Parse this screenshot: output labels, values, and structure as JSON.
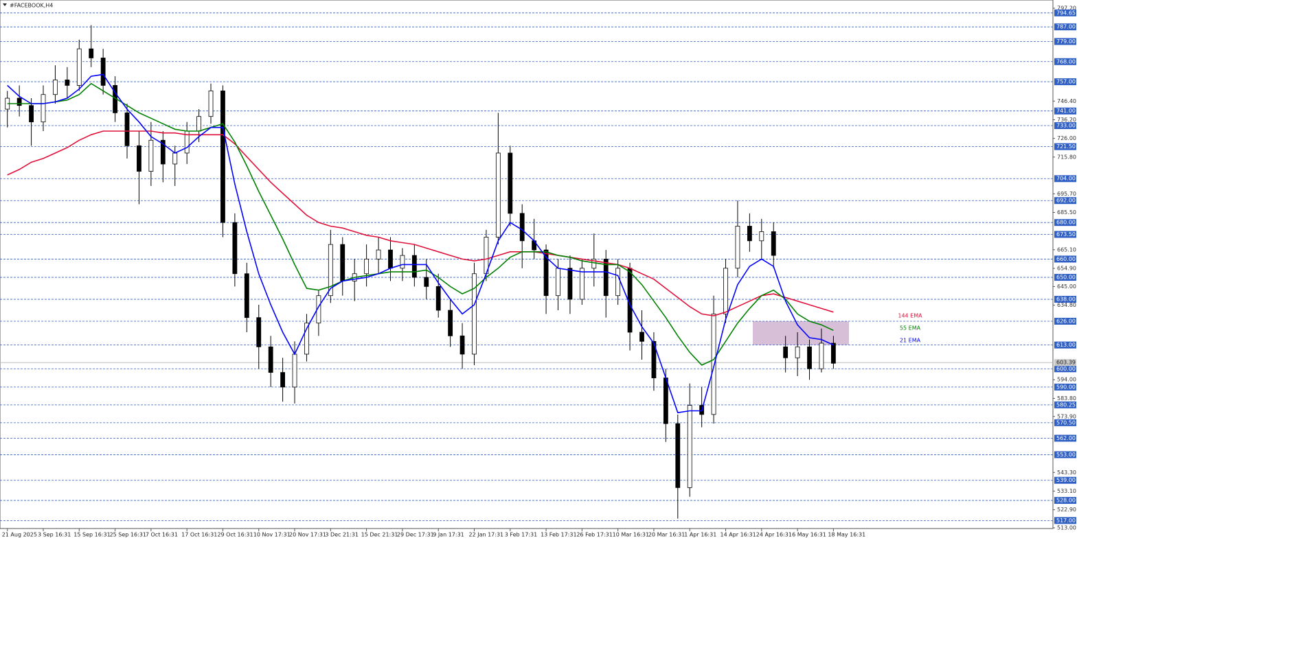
{
  "chart_data": {
    "type": "candlestick",
    "title": "#FACEBOOK,H4",
    "categories": [
      "21 Aug 2025",
      null,
      null,
      "3 Sep 16:31",
      null,
      null,
      "15 Sep 16:31",
      null,
      null,
      "25 Sep 16:31",
      null,
      null,
      "7 Oct 16:31",
      null,
      null,
      "17 Oct 16:31",
      null,
      null,
      "29 Oct 16:31",
      null,
      null,
      "10 Nov 17:31",
      null,
      null,
      "20 Nov 17:31",
      null,
      null,
      "3 Dec 21:31",
      null,
      null,
      "15 Dec 21:31",
      null,
      null,
      "29 Dec 17:31",
      null,
      null,
      "9 Jan 17:31",
      null,
      null,
      "22 Jan 17:31",
      null,
      null,
      "3 Feb 17:31",
      null,
      null,
      "13 Feb 17:31",
      null,
      null,
      "26 Feb 17:31",
      null,
      null,
      "10 Mar 16:31",
      null,
      null,
      "20 Mar 16:31",
      null,
      null,
      "1 Apr 16:31",
      null,
      null,
      "14 Apr 16:31",
      null,
      null,
      "24 Apr 16:31",
      null,
      null,
      "6 May 16:31",
      null,
      null,
      "18 May 16:31"
    ],
    "candles": [
      [
        742,
        752,
        732,
        748
      ],
      [
        748,
        755,
        738,
        744
      ],
      [
        744,
        748,
        722,
        735
      ],
      [
        735,
        755,
        730,
        750
      ],
      [
        750,
        766,
        745,
        758
      ],
      [
        758,
        765,
        748,
        755
      ],
      [
        755,
        780,
        752,
        775
      ],
      [
        775,
        788,
        765,
        770
      ],
      [
        770,
        775,
        750,
        755
      ],
      [
        755,
        760,
        735,
        740
      ],
      [
        740,
        745,
        715,
        722
      ],
      [
        722,
        730,
        690,
        708
      ],
      [
        708,
        735,
        700,
        725
      ],
      [
        725,
        730,
        702,
        712
      ],
      [
        712,
        722,
        700,
        718
      ],
      [
        718,
        735,
        712,
        730
      ],
      [
        730,
        742,
        724,
        738
      ],
      [
        738,
        756,
        734,
        752
      ],
      [
        752,
        755,
        672,
        680
      ],
      [
        680,
        685,
        645,
        652
      ],
      [
        652,
        658,
        620,
        628
      ],
      [
        628,
        635,
        600,
        612
      ],
      [
        612,
        618,
        590,
        598
      ],
      [
        598,
        606,
        582,
        590
      ],
      [
        590,
        615,
        581,
        608
      ],
      [
        608,
        630,
        604,
        625
      ],
      [
        625,
        643,
        618,
        640
      ],
      [
        640,
        676,
        636,
        668
      ],
      [
        668,
        672,
        640,
        648
      ],
      [
        648,
        660,
        637,
        652
      ],
      [
        652,
        668,
        645,
        660
      ],
      [
        660,
        672,
        652,
        665
      ],
      [
        665,
        672,
        648,
        655
      ],
      [
        655,
        666,
        648,
        662
      ],
      [
        662,
        668,
        645,
        650
      ],
      [
        650,
        660,
        638,
        645
      ],
      [
        645,
        652,
        628,
        632
      ],
      [
        632,
        638,
        612,
        618
      ],
      [
        618,
        625,
        600,
        608
      ],
      [
        608,
        658,
        602,
        652
      ],
      [
        652,
        676,
        648,
        672
      ],
      [
        672,
        740,
        668,
        718
      ],
      [
        718,
        722,
        678,
        685
      ],
      [
        685,
        690,
        655,
        670
      ],
      [
        670,
        682,
        660,
        665
      ],
      [
        665,
        668,
        630,
        640
      ],
      [
        640,
        660,
        632,
        655
      ],
      [
        655,
        662,
        630,
        638
      ],
      [
        638,
        660,
        635,
        655
      ],
      [
        655,
        674,
        645,
        660
      ],
      [
        660,
        665,
        628,
        640
      ],
      [
        640,
        660,
        635,
        655
      ],
      [
        655,
        658,
        610,
        620
      ],
      [
        620,
        632,
        605,
        615
      ],
      [
        615,
        620,
        588,
        595
      ],
      [
        595,
        600,
        560,
        570
      ],
      [
        570,
        575,
        518,
        535
      ],
      [
        535,
        592,
        530,
        580
      ],
      [
        580,
        590,
        568,
        575
      ],
      [
        575,
        640,
        570,
        630
      ],
      [
        630,
        660,
        625,
        655
      ],
      [
        655,
        692,
        650,
        678
      ],
      [
        678,
        685,
        664,
        670
      ],
      [
        670,
        682,
        660,
        675
      ],
      [
        675,
        680,
        655,
        662
      ],
      [
        612,
        618,
        598,
        606
      ],
      [
        606,
        620,
        596,
        612
      ],
      [
        612,
        616,
        594,
        600
      ],
      [
        600,
        622,
        598,
        614
      ],
      [
        614,
        618,
        600,
        603
      ]
    ],
    "series": [
      {
        "name": "144 EMA",
        "color": "#e0103a",
        "values": [
          706,
          709,
          713,
          715,
          718,
          721,
          725,
          728,
          730,
          730,
          730,
          730,
          730,
          729,
          729,
          728,
          728,
          728,
          728,
          723,
          716,
          709,
          702,
          696,
          690,
          684,
          680,
          678,
          677,
          675,
          673,
          672,
          670,
          669,
          668,
          666,
          664,
          662,
          660,
          659,
          660,
          662,
          664,
          664,
          664,
          663,
          662,
          661,
          660,
          659,
          658,
          657,
          655,
          652,
          649,
          644,
          639,
          634,
          630,
          629,
          631,
          634,
          637,
          640,
          641,
          639,
          637,
          635,
          633,
          631
        ]
      },
      {
        "name": "55 EMA",
        "color": "#008000",
        "values": [
          745,
          745,
          745,
          745,
          746,
          747,
          750,
          756,
          752,
          748,
          744,
          740,
          737,
          734,
          731,
          730,
          730,
          732,
          734,
          724,
          711,
          697,
          684,
          671,
          657,
          644,
          643,
          645,
          648,
          650,
          651,
          652,
          653,
          653,
          653,
          654,
          650,
          645,
          641,
          644,
          650,
          655,
          661,
          664,
          664,
          664,
          662,
          661,
          659,
          658,
          657,
          657,
          653,
          646,
          637,
          628,
          618,
          609,
          602,
          605,
          615,
          625,
          633,
          640,
          643,
          638,
          630,
          626,
          624,
          621
        ]
      },
      {
        "name": "21 EMA",
        "color": "#0000ff",
        "values": [
          755,
          749,
          745,
          745,
          746,
          748,
          753,
          760,
          761,
          751,
          742,
          735,
          727,
          723,
          718,
          721,
          727,
          732,
          732,
          701,
          675,
          652,
          635,
          620,
          608,
          622,
          634,
          644,
          648,
          649,
          650,
          652,
          655,
          657,
          657,
          657,
          647,
          638,
          630,
          635,
          652,
          670,
          680,
          676,
          670,
          661,
          655,
          654,
          653,
          653,
          653,
          651,
          635,
          623,
          614,
          595,
          576,
          577,
          577,
          601,
          627,
          646,
          656,
          660,
          656,
          637,
          624,
          617,
          616,
          613
        ]
      }
    ],
    "ylim": [
      513.0,
      797.2
    ],
    "yticks": [
      {
        "value": 797.2,
        "label": "797.20"
      },
      {
        "value": 746.4,
        "label": "746.40"
      },
      {
        "value": 736.2,
        "label": "736.20"
      },
      {
        "value": 726.0,
        "label": "726.00"
      },
      {
        "value": 715.8,
        "label": "715.80"
      },
      {
        "value": 695.7,
        "label": "695.70"
      },
      {
        "value": 685.5,
        "label": "685.50"
      },
      {
        "value": 665.1,
        "label": "665.10"
      },
      {
        "value": 654.9,
        "label": "654.90"
      },
      {
        "value": 645.0,
        "label": "645.00"
      },
      {
        "value": 634.8,
        "label": "634.80"
      },
      {
        "value": 594.0,
        "label": "594.00"
      },
      {
        "value": 583.8,
        "label": "583.80"
      },
      {
        "value": 573.9,
        "label": "573.90"
      },
      {
        "value": 543.3,
        "label": "543.30"
      },
      {
        "value": 533.1,
        "label": "533.10"
      },
      {
        "value": 522.9,
        "label": "522.90"
      },
      {
        "value": 513.0,
        "label": "513.00"
      }
    ],
    "levels": [
      {
        "value": 794.65,
        "label": "794.65"
      },
      {
        "value": 787.0,
        "label": "787.00"
      },
      {
        "value": 779.0,
        "label": "779.00"
      },
      {
        "value": 768.0,
        "label": "768.00"
      },
      {
        "value": 757.0,
        "label": "757.00"
      },
      {
        "value": 741.0,
        "label": "741.00"
      },
      {
        "value": 733.0,
        "label": "733.00"
      },
      {
        "value": 721.5,
        "label": "721.50"
      },
      {
        "value": 704.0,
        "label": "704.00"
      },
      {
        "value": 692.0,
        "label": "692.00"
      },
      {
        "value": 680.0,
        "label": "680.00"
      },
      {
        "value": 673.5,
        "label": "673.50"
      },
      {
        "value": 660.0,
        "label": "660.00"
      },
      {
        "value": 650.0,
        "label": "650.00"
      },
      {
        "value": 638.0,
        "label": "638.00"
      },
      {
        "value": 626.0,
        "label": "626.00"
      },
      {
        "value": 613.0,
        "label": "613.00"
      },
      {
        "value": 600.0,
        "label": "600.00"
      },
      {
        "value": 590.0,
        "label": "590.00"
      },
      {
        "value": 580.25,
        "label": "580.25"
      },
      {
        "value": 570.5,
        "label": "570.50"
      },
      {
        "value": 562.0,
        "label": "562.00"
      },
      {
        "value": 553.0,
        "label": "553.00"
      },
      {
        "value": 539.0,
        "label": "539.00"
      },
      {
        "value": 528.0,
        "label": "528.00"
      },
      {
        "value": 517.0,
        "label": "517.00"
      }
    ],
    "level_color": "#2f5fc4",
    "current_price": {
      "value": 603.39,
      "label": "603.39"
    },
    "zone": [
      626,
      613
    ],
    "zone_color": "#d8bfd8"
  }
}
